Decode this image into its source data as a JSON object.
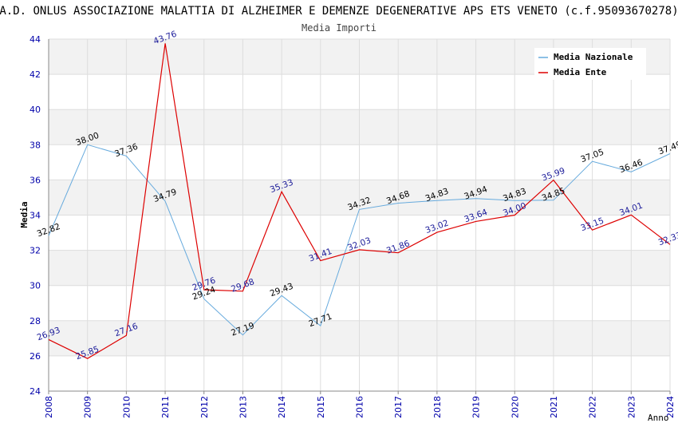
{
  "chart_data": {
    "type": "line",
    "title": "A.D. ONLUS ASSOCIAZIONE MALATTIA DI ALZHEIMER E DEMENZE DEGENERATIVE APS ETS VENETO (c.f.95093670278)",
    "subtitle": "Media Importi",
    "xlabel": "Anno",
    "ylabel": "Media",
    "ylim": [
      24,
      44
    ],
    "yticks": [
      24,
      26,
      28,
      30,
      32,
      34,
      36,
      38,
      40,
      42,
      44
    ],
    "x": [
      "2008",
      "2009",
      "2010",
      "2011",
      "2012",
      "2013",
      "2014",
      "2015",
      "2016",
      "2017",
      "2018",
      "2019",
      "2020",
      "2021",
      "2022",
      "2023",
      "2024"
    ],
    "series": [
      {
        "name": "Media Nazionale",
        "color": "#66aadd",
        "values": [
          32.82,
          38.0,
          37.36,
          34.79,
          29.24,
          27.19,
          29.43,
          27.71,
          34.32,
          34.68,
          34.83,
          34.94,
          34.83,
          34.85,
          37.05,
          36.46,
          37.49
        ],
        "labels": [
          "32.82",
          "38.00",
          "37.36",
          "34.79",
          "29.24",
          "27.19",
          "29.43",
          "27.71",
          "34.32",
          "34.68",
          "34.83",
          "34.94",
          "34.83",
          "34.85",
          "37.05",
          "36.46",
          "37.49"
        ]
      },
      {
        "name": "Media Ente",
        "color": "#dd0000",
        "values": [
          26.93,
          25.85,
          27.16,
          43.76,
          29.76,
          29.68,
          35.33,
          31.41,
          32.03,
          31.86,
          33.02,
          33.64,
          34.0,
          35.99,
          33.15,
          34.01,
          32.33
        ],
        "labels": [
          "26.93",
          "25.85",
          "27.16",
          "43.76",
          "29.76",
          "29.68",
          "35.33",
          "31.41",
          "32.03",
          "31.86",
          "33.02",
          "33.64",
          "34.00",
          "35.99",
          "33.15",
          "34.01",
          "32.33"
        ]
      }
    ],
    "legend": {
      "position": "top-right"
    },
    "grid": true
  }
}
